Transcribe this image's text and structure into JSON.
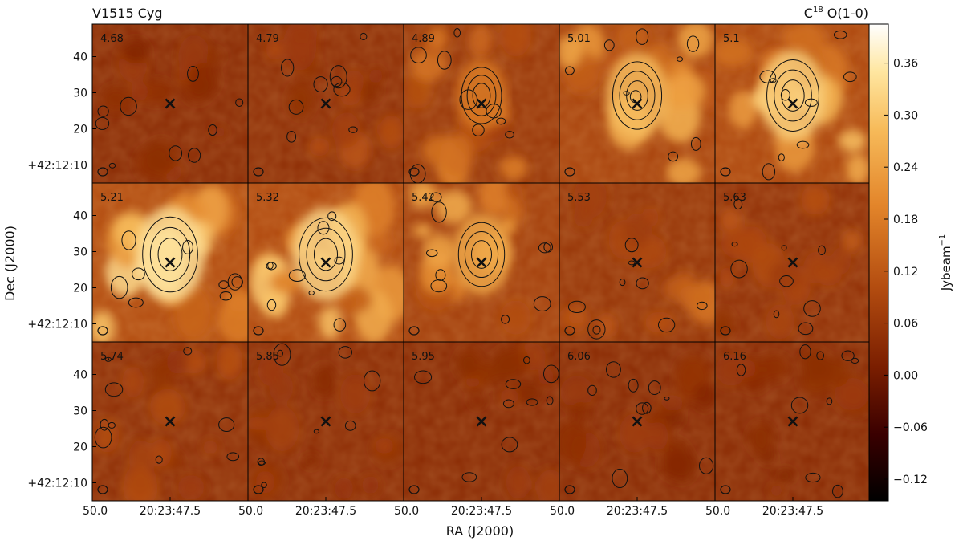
{
  "chart_data": {
    "type": "heatmap",
    "title_left": "V1515 Cyg",
    "title_right_main": "C",
    "title_right_sup": "18",
    "title_right_rest": " O(1-0)",
    "xlabel": "RA (J2000)",
    "ylabel": "Dec (J2000)",
    "colorbar_label_main": "Jybeam",
    "colorbar_label_sup": "−1",
    "colorbar_ticks": [
      "0.36",
      "0.30",
      "0.24",
      "0.18",
      "0.12",
      "0.06",
      "0.00",
      "−0.06",
      "−0.12"
    ],
    "colorbar_tick_values": [
      0.36,
      0.3,
      0.24,
      0.18,
      0.12,
      0.06,
      0.0,
      -0.06,
      -0.12
    ],
    "colorbar_range": [
      -0.145,
      0.405
    ],
    "colormap": [
      "#000000",
      "#3a0000",
      "#7a1e00",
      "#b44d10",
      "#e3852a",
      "#f7bb5a",
      "#ffe6a0",
      "#ffffff"
    ],
    "x_ticks": [
      "50.0",
      "20:23:47.5"
    ],
    "y_ticks": [
      "40",
      "30",
      "20",
      "+42:12:10"
    ],
    "y_tick_values": [
      40,
      30,
      20,
      10
    ],
    "y_range": [
      5,
      49
    ],
    "source_position": "×",
    "grid_rows": 3,
    "grid_cols": 5,
    "panels": [
      {
        "velocity": "4.68",
        "intensity": 0.04
      },
      {
        "velocity": "4.79",
        "intensity": 0.06
      },
      {
        "velocity": "4.89",
        "intensity": 0.1
      },
      {
        "velocity": "5.01",
        "intensity": 0.16
      },
      {
        "velocity": "5.1",
        "intensity": 0.18
      },
      {
        "velocity": "5.21",
        "intensity": 0.2
      },
      {
        "velocity": "5.32",
        "intensity": 0.19
      },
      {
        "velocity": "5.42",
        "intensity": 0.14
      },
      {
        "velocity": "5.53",
        "intensity": 0.09
      },
      {
        "velocity": "5.63",
        "intensity": 0.07
      },
      {
        "velocity": "5.74",
        "intensity": 0.06
      },
      {
        "velocity": "5.85",
        "intensity": 0.05
      },
      {
        "velocity": "5.95",
        "intensity": 0.04
      },
      {
        "velocity": "6.06",
        "intensity": 0.04
      },
      {
        "velocity": "6.16",
        "intensity": 0.04
      }
    ]
  }
}
